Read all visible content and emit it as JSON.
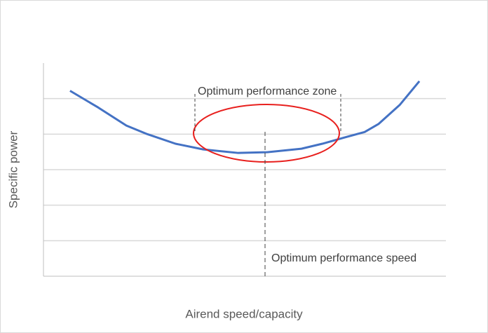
{
  "chart_data": {
    "type": "line",
    "x_label": "Airend speed/capacity",
    "y_label": "Specific power",
    "xlim": [
      0,
      10
    ],
    "ylim": [
      0,
      6
    ],
    "grid_lines": [
      1,
      2,
      3,
      4,
      5
    ],
    "x": [
      0.66,
      1.36,
      2.06,
      2.58,
      3.28,
      3.97,
      4.84,
      5.54,
      6.41,
      6.93,
      7.46,
      7.98,
      8.33,
      8.85,
      9.34
    ],
    "series": [
      {
        "color": "#4472c4",
        "values": [
          5.22,
          4.75,
          4.24,
          4.0,
          3.73,
          3.57,
          3.47,
          3.49,
          3.59,
          3.73,
          3.9,
          4.06,
          4.29,
          4.82,
          5.49
        ]
      }
    ],
    "annotations": [
      "Optimum performance zone",
      "Optimum performance speed"
    ]
  }
}
